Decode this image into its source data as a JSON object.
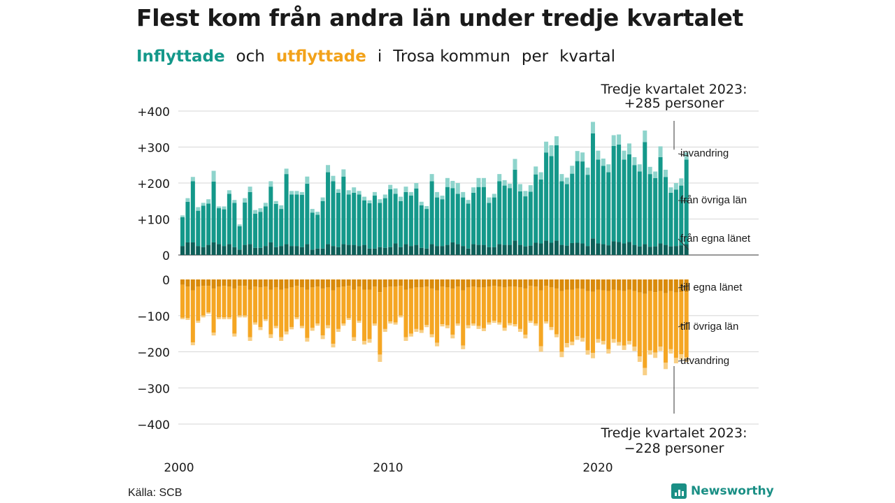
{
  "title": "Flest kom från andra län under tredje kvartalet",
  "subtitle": {
    "part1": "Inflyttade",
    "part2": "och",
    "part3": "utflyttade",
    "part4": "i",
    "part5": "Trosa kommun",
    "part6": "per",
    "part7": "kvartal"
  },
  "source": "Källa: SCB",
  "brand": "Newsworthy",
  "colors": {
    "in_own_county": "#0d5f58",
    "in_other_counties": "#14988a",
    "in_immigration": "#8ed4cc",
    "out_own_county": "#d98a0a",
    "out_other_counties": "#f5a623",
    "out_emigration": "#f8cf86",
    "grid": "#dddddd"
  },
  "annotations": {
    "top": [
      "Tredje kvartalet 2023:",
      "+285 personer"
    ],
    "bottom": [
      "Tredje kvartalet 2023:",
      "−228 personer"
    ]
  },
  "chart_data": {
    "type": "bar",
    "stacked": true,
    "x_start": "2000 Q1",
    "x_end": "2023 Q3",
    "x_ticks": [
      "2000",
      "2010",
      "2020"
    ],
    "y_ticks_in": [
      "0",
      "+100",
      "+200",
      "+300",
      "+400"
    ],
    "y_ticks_out": [
      "0",
      "−100",
      "−200",
      "−300",
      "−400"
    ],
    "ylim_in": [
      0,
      400
    ],
    "ylim_out": [
      -400,
      0
    ],
    "grid": true,
    "series_in_labels": [
      "invandring",
      "från övriga län",
      "från egna länet"
    ],
    "series_out_labels": [
      "till egna länet",
      "till övriga län",
      "utvandring"
    ],
    "inflow_total": [
      110,
      158,
      217,
      133,
      145,
      155,
      234,
      135,
      135,
      180,
      153,
      85,
      158,
      190,
      125,
      130,
      145,
      205,
      150,
      138,
      240,
      178,
      178,
      175,
      218,
      128,
      120,
      160,
      250,
      220,
      183,
      238,
      180,
      188,
      178,
      162,
      152,
      175,
      155,
      168,
      195,
      185,
      162,
      190,
      175,
      200,
      148,
      136,
      225,
      175,
      165,
      214,
      206,
      200,
      175,
      153,
      188,
      214,
      214,
      160,
      170,
      225,
      208,
      198,
      267,
      197,
      178,
      194,
      246,
      230,
      315,
      305,
      330,
      225,
      215,
      248,
      289,
      285,
      243,
      370,
      290,
      268,
      252,
      333,
      335,
      290,
      310,
      272,
      252,
      346,
      245,
      232,
      302,
      237,
      188,
      200,
      213,
      285
    ],
    "inflow_own": [
      25,
      35,
      35,
      25,
      22,
      28,
      35,
      30,
      25,
      30,
      22,
      15,
      28,
      30,
      20,
      20,
      25,
      35,
      22,
      25,
      30,
      25,
      25,
      22,
      30,
      15,
      18,
      18,
      30,
      25,
      22,
      30,
      28,
      28,
      25,
      28,
      18,
      18,
      22,
      20,
      22,
      32,
      22,
      30,
      25,
      28,
      20,
      18,
      30,
      25,
      25,
      28,
      35,
      30,
      25,
      18,
      30,
      28,
      28,
      22,
      22,
      30,
      28,
      28,
      40,
      28,
      24,
      26,
      34,
      32,
      40,
      34,
      40,
      28,
      26,
      33,
      34,
      32,
      25,
      46,
      32,
      30,
      27,
      38,
      36,
      32,
      36,
      28,
      24,
      30,
      23,
      24,
      32,
      28,
      24,
      25,
      27,
      30
    ],
    "inflow_imm": [
      5,
      10,
      12,
      10,
      8,
      12,
      30,
      5,
      8,
      10,
      8,
      5,
      12,
      15,
      10,
      10,
      10,
      15,
      8,
      10,
      15,
      10,
      10,
      8,
      20,
      10,
      8,
      10,
      20,
      15,
      10,
      20,
      12,
      15,
      10,
      10,
      8,
      10,
      10,
      10,
      12,
      15,
      12,
      15,
      10,
      15,
      10,
      8,
      20,
      15,
      10,
      25,
      20,
      30,
      15,
      10,
      15,
      25,
      25,
      15,
      10,
      20,
      15,
      12,
      30,
      20,
      15,
      18,
      22,
      20,
      30,
      30,
      25,
      20,
      18,
      22,
      28,
      25,
      20,
      32,
      25,
      20,
      22,
      30,
      28,
      25,
      30,
      22,
      20,
      32,
      20,
      18,
      30,
      20,
      15,
      18,
      20,
      20
    ],
    "outflow_total": [
      110,
      112,
      182,
      120,
      105,
      95,
      155,
      110,
      110,
      110,
      158,
      105,
      105,
      170,
      125,
      140,
      115,
      162,
      135,
      170,
      152,
      138,
      110,
      135,
      172,
      142,
      128,
      165,
      135,
      188,
      145,
      128,
      112,
      170,
      120,
      180,
      175,
      128,
      228,
      145,
      122,
      125,
      105,
      170,
      158,
      145,
      148,
      132,
      160,
      185,
      130,
      135,
      163,
      128,
      193,
      135,
      128,
      137,
      143,
      125,
      120,
      125,
      142,
      127,
      130,
      145,
      163,
      120,
      128,
      200,
      122,
      140,
      160,
      215,
      188,
      182,
      167,
      172,
      208,
      218,
      175,
      180,
      205,
      175,
      183,
      195,
      180,
      198,
      228,
      265,
      208,
      217,
      198,
      248,
      205,
      232,
      222,
      228
    ],
    "outflow_own": [
      15,
      20,
      30,
      20,
      18,
      18,
      25,
      20,
      18,
      20,
      25,
      18,
      18,
      28,
      20,
      22,
      20,
      28,
      22,
      28,
      25,
      22,
      18,
      22,
      28,
      22,
      20,
      25,
      22,
      30,
      22,
      20,
      18,
      28,
      20,
      28,
      28,
      20,
      35,
      22,
      20,
      20,
      18,
      28,
      25,
      22,
      22,
      20,
      25,
      30,
      20,
      22,
      25,
      20,
      30,
      22,
      20,
      22,
      22,
      20,
      18,
      20,
      22,
      20,
      20,
      22,
      25,
      18,
      20,
      30,
      18,
      22,
      25,
      32,
      28,
      28,
      25,
      26,
      32,
      34,
      28,
      30,
      32,
      28,
      30,
      32,
      28,
      32,
      36,
      40,
      32,
      35,
      32,
      38,
      32,
      36,
      35,
      35
    ],
    "outflow_emig": [
      4,
      5,
      8,
      6,
      5,
      4,
      8,
      5,
      5,
      5,
      8,
      5,
      5,
      10,
      6,
      8,
      5,
      10,
      6,
      10,
      8,
      6,
      5,
      6,
      10,
      8,
      6,
      10,
      8,
      10,
      8,
      6,
      5,
      10,
      6,
      10,
      10,
      6,
      20,
      8,
      6,
      6,
      5,
      10,
      8,
      8,
      8,
      6,
      8,
      10,
      6,
      8,
      10,
      6,
      10,
      8,
      6,
      8,
      8,
      6,
      6,
      6,
      8,
      6,
      6,
      8,
      10,
      6,
      6,
      15,
      6,
      8,
      8,
      15,
      12,
      10,
      10,
      10,
      12,
      15,
      10,
      10,
      12,
      10,
      10,
      12,
      10,
      12,
      15,
      20,
      12,
      15,
      12,
      18,
      12,
      15,
      15,
      12
    ],
    "last_quarter": {
      "inflow": 285,
      "outflow": -228
    }
  }
}
